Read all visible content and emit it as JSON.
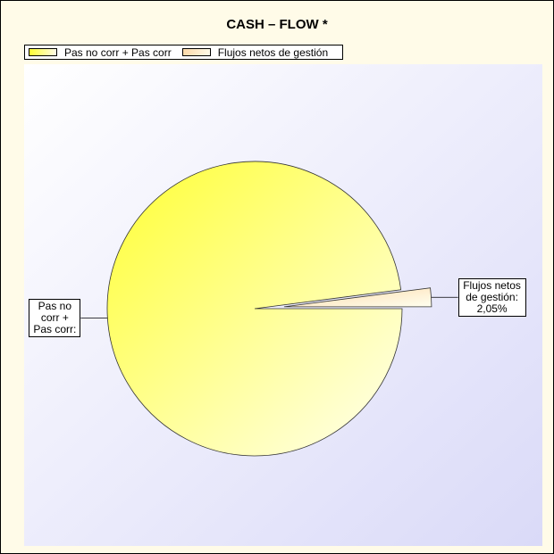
{
  "chart_data": {
    "type": "pie",
    "title": "CASH – FLOW *",
    "categories": [
      "Pas no corr + Pas corr",
      "Flujos netos de gestión"
    ],
    "values": [
      97.95,
      2.05
    ],
    "labels": [
      "Pas no corr + Pas corr:",
      "Flujos netos de gestión:"
    ],
    "value_labels": [
      null,
      "2,05%"
    ],
    "colors": [
      "#ffff33",
      "#fcd9a8"
    ]
  }
}
